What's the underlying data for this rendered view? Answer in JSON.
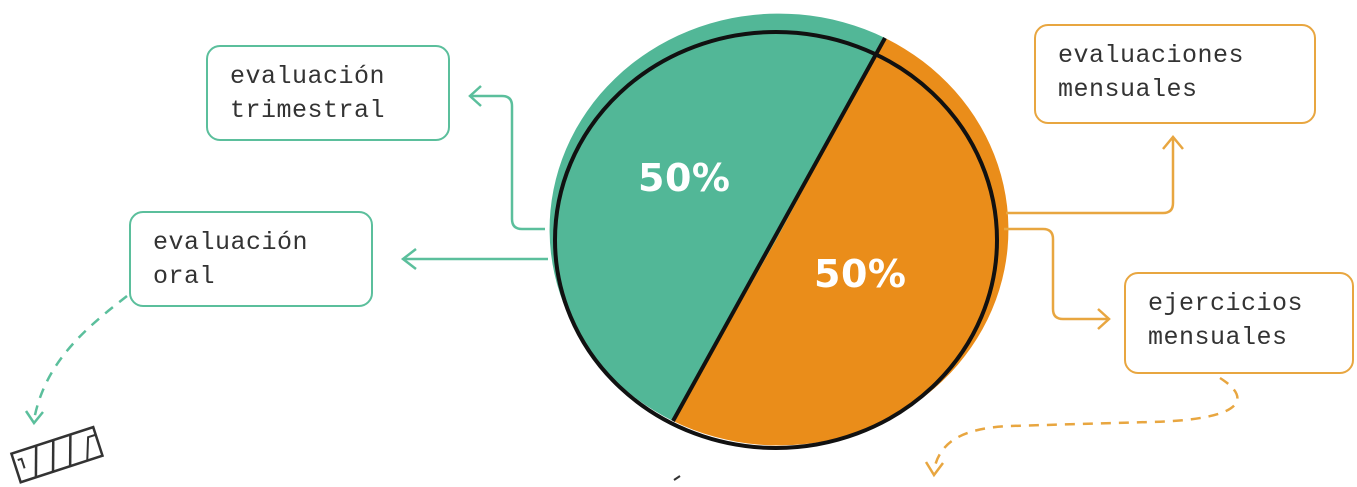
{
  "diagram": {
    "boxes": {
      "trimestral": {
        "line1": "evaluación",
        "line2": "trimestral"
      },
      "oral": {
        "line1": "evaluación",
        "line2": "oral"
      },
      "mensuales_eval": {
        "line1": "evaluaciones",
        "line2": "mensuales"
      },
      "ejercicios": {
        "line1": "ejercicios",
        "line2": "mensuales"
      }
    },
    "pie": {
      "slices": [
        {
          "label": "50%",
          "value": 50,
          "color": "#52b797"
        },
        {
          "label": "50%",
          "value": 50,
          "color": "#ea8d1a"
        }
      ]
    },
    "colors": {
      "green_line": "#5bbf9c",
      "orange_line": "#e8a640",
      "outline": "#111111"
    },
    "icons": [
      "film-strip-icon"
    ]
  }
}
